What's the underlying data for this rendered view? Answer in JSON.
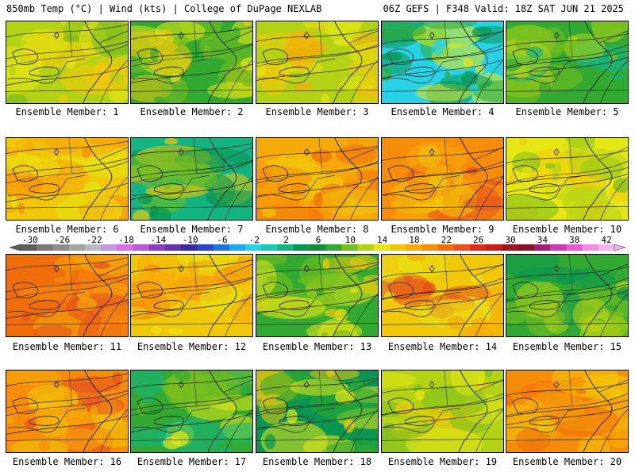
{
  "header": {
    "left_title": "850mb Temp (°C) | Wind (kts) | College of DuPage NEXLAB",
    "right_title": "06Z GEFS | F348 Valid: 18Z SAT JUN 21 2025"
  },
  "colorbar": {
    "labels": [
      "-30",
      "-26",
      "-22",
      "-18",
      "-14",
      "-10",
      "-6",
      "-2",
      "2",
      "6",
      "10",
      "14",
      "18",
      "22",
      "26",
      "30",
      "34",
      "38",
      "42"
    ],
    "colors": [
      "#5e5e5e",
      "#787878",
      "#8c8c8c",
      "#a3a3a3",
      "#b8b8c8",
      "#c896e6",
      "#dc6ee6",
      "#b45ad2",
      "#8c3cbe",
      "#6432aa",
      "#3c28a0",
      "#2846c8",
      "#1e78dc",
      "#1eaaf0",
      "#28d2e6",
      "#20c8b4",
      "#14b482",
      "#0a9650",
      "#148c3c",
      "#32aa32",
      "#78be1e",
      "#b4d214",
      "#e6e614",
      "#f0c80a",
      "#f5aa0a",
      "#f58c0a",
      "#f06e0a",
      "#e6501e",
      "#dc2d1e",
      "#c81e14",
      "#a0141e",
      "#821432",
      "#a01e78",
      "#c83cb4",
      "#e65ad2",
      "#f08ce6",
      "#f5b4f0"
    ]
  },
  "members": [
    {
      "label": "Ensemble Member: 1",
      "palette": [
        "#b4d214",
        "#e6e614",
        "#f0c80a",
        "#78be1e"
      ]
    },
    {
      "label": "Ensemble Member: 2",
      "palette": [
        "#32aa32",
        "#78be1e",
        "#e6e614",
        "#f0c80a"
      ]
    },
    {
      "label": "Ensemble Member: 3",
      "palette": [
        "#b4d214",
        "#e6e614",
        "#f0c80a",
        "#f5aa0a"
      ]
    },
    {
      "label": "Ensemble Member: 4",
      "palette": [
        "#28d2e6",
        "#0a9650",
        "#32aa32",
        "#e6e614"
      ]
    },
    {
      "label": "Ensemble Member: 5",
      "palette": [
        "#32aa32",
        "#78be1e",
        "#b4d214",
        "#14b482"
      ]
    },
    {
      "label": "Ensemble Member: 6",
      "palette": [
        "#f0c80a",
        "#f5aa0a",
        "#e6e614",
        "#f58c0a"
      ]
    },
    {
      "label": "Ensemble Member: 7",
      "palette": [
        "#14b482",
        "#0a9650",
        "#78be1e",
        "#f0c80a"
      ]
    },
    {
      "label": "Ensemble Member: 8",
      "palette": [
        "#f5aa0a",
        "#f58c0a",
        "#f0c80a",
        "#f06e0a"
      ]
    },
    {
      "label": "Ensemble Member: 9",
      "palette": [
        "#f58c0a",
        "#f5aa0a",
        "#f0c80a",
        "#e6501e"
      ]
    },
    {
      "label": "Ensemble Member: 10",
      "palette": [
        "#e6e614",
        "#b4d214",
        "#f0c80a",
        "#78be1e"
      ]
    },
    {
      "label": "Ensemble Member: 11",
      "palette": [
        "#f06e0a",
        "#f58c0a",
        "#f5aa0a",
        "#e6501e"
      ]
    },
    {
      "label": "Ensemble Member: 12",
      "palette": [
        "#f0c80a",
        "#f5aa0a",
        "#f58c0a",
        "#e6e614"
      ]
    },
    {
      "label": "Ensemble Member: 13",
      "palette": [
        "#32aa32",
        "#78be1e",
        "#e6e614",
        "#f0c80a"
      ]
    },
    {
      "label": "Ensemble Member: 14",
      "palette": [
        "#f0c80a",
        "#f5aa0a",
        "#e6501e",
        "#e6e614"
      ]
    },
    {
      "label": "Ensemble Member: 15",
      "palette": [
        "#32aa32",
        "#78be1e",
        "#b4d214",
        "#0a9650"
      ]
    },
    {
      "label": "Ensemble Member: 16",
      "palette": [
        "#f58c0a",
        "#f5aa0a",
        "#f0c80a",
        "#e6501e"
      ]
    },
    {
      "label": "Ensemble Member: 17",
      "palette": [
        "#32aa32",
        "#78be1e",
        "#14b482",
        "#e6e614"
      ]
    },
    {
      "label": "Ensemble Member: 18",
      "palette": [
        "#0a9650",
        "#32aa32",
        "#e6e614",
        "#f0c80a"
      ]
    },
    {
      "label": "Ensemble Member: 19",
      "palette": [
        "#b4d214",
        "#78be1e",
        "#e6e614",
        "#f0c80a"
      ]
    },
    {
      "label": "Ensemble Member: 20",
      "palette": [
        "#f58c0a",
        "#f5aa0a",
        "#f0c80a",
        "#f06e0a"
      ]
    }
  ]
}
